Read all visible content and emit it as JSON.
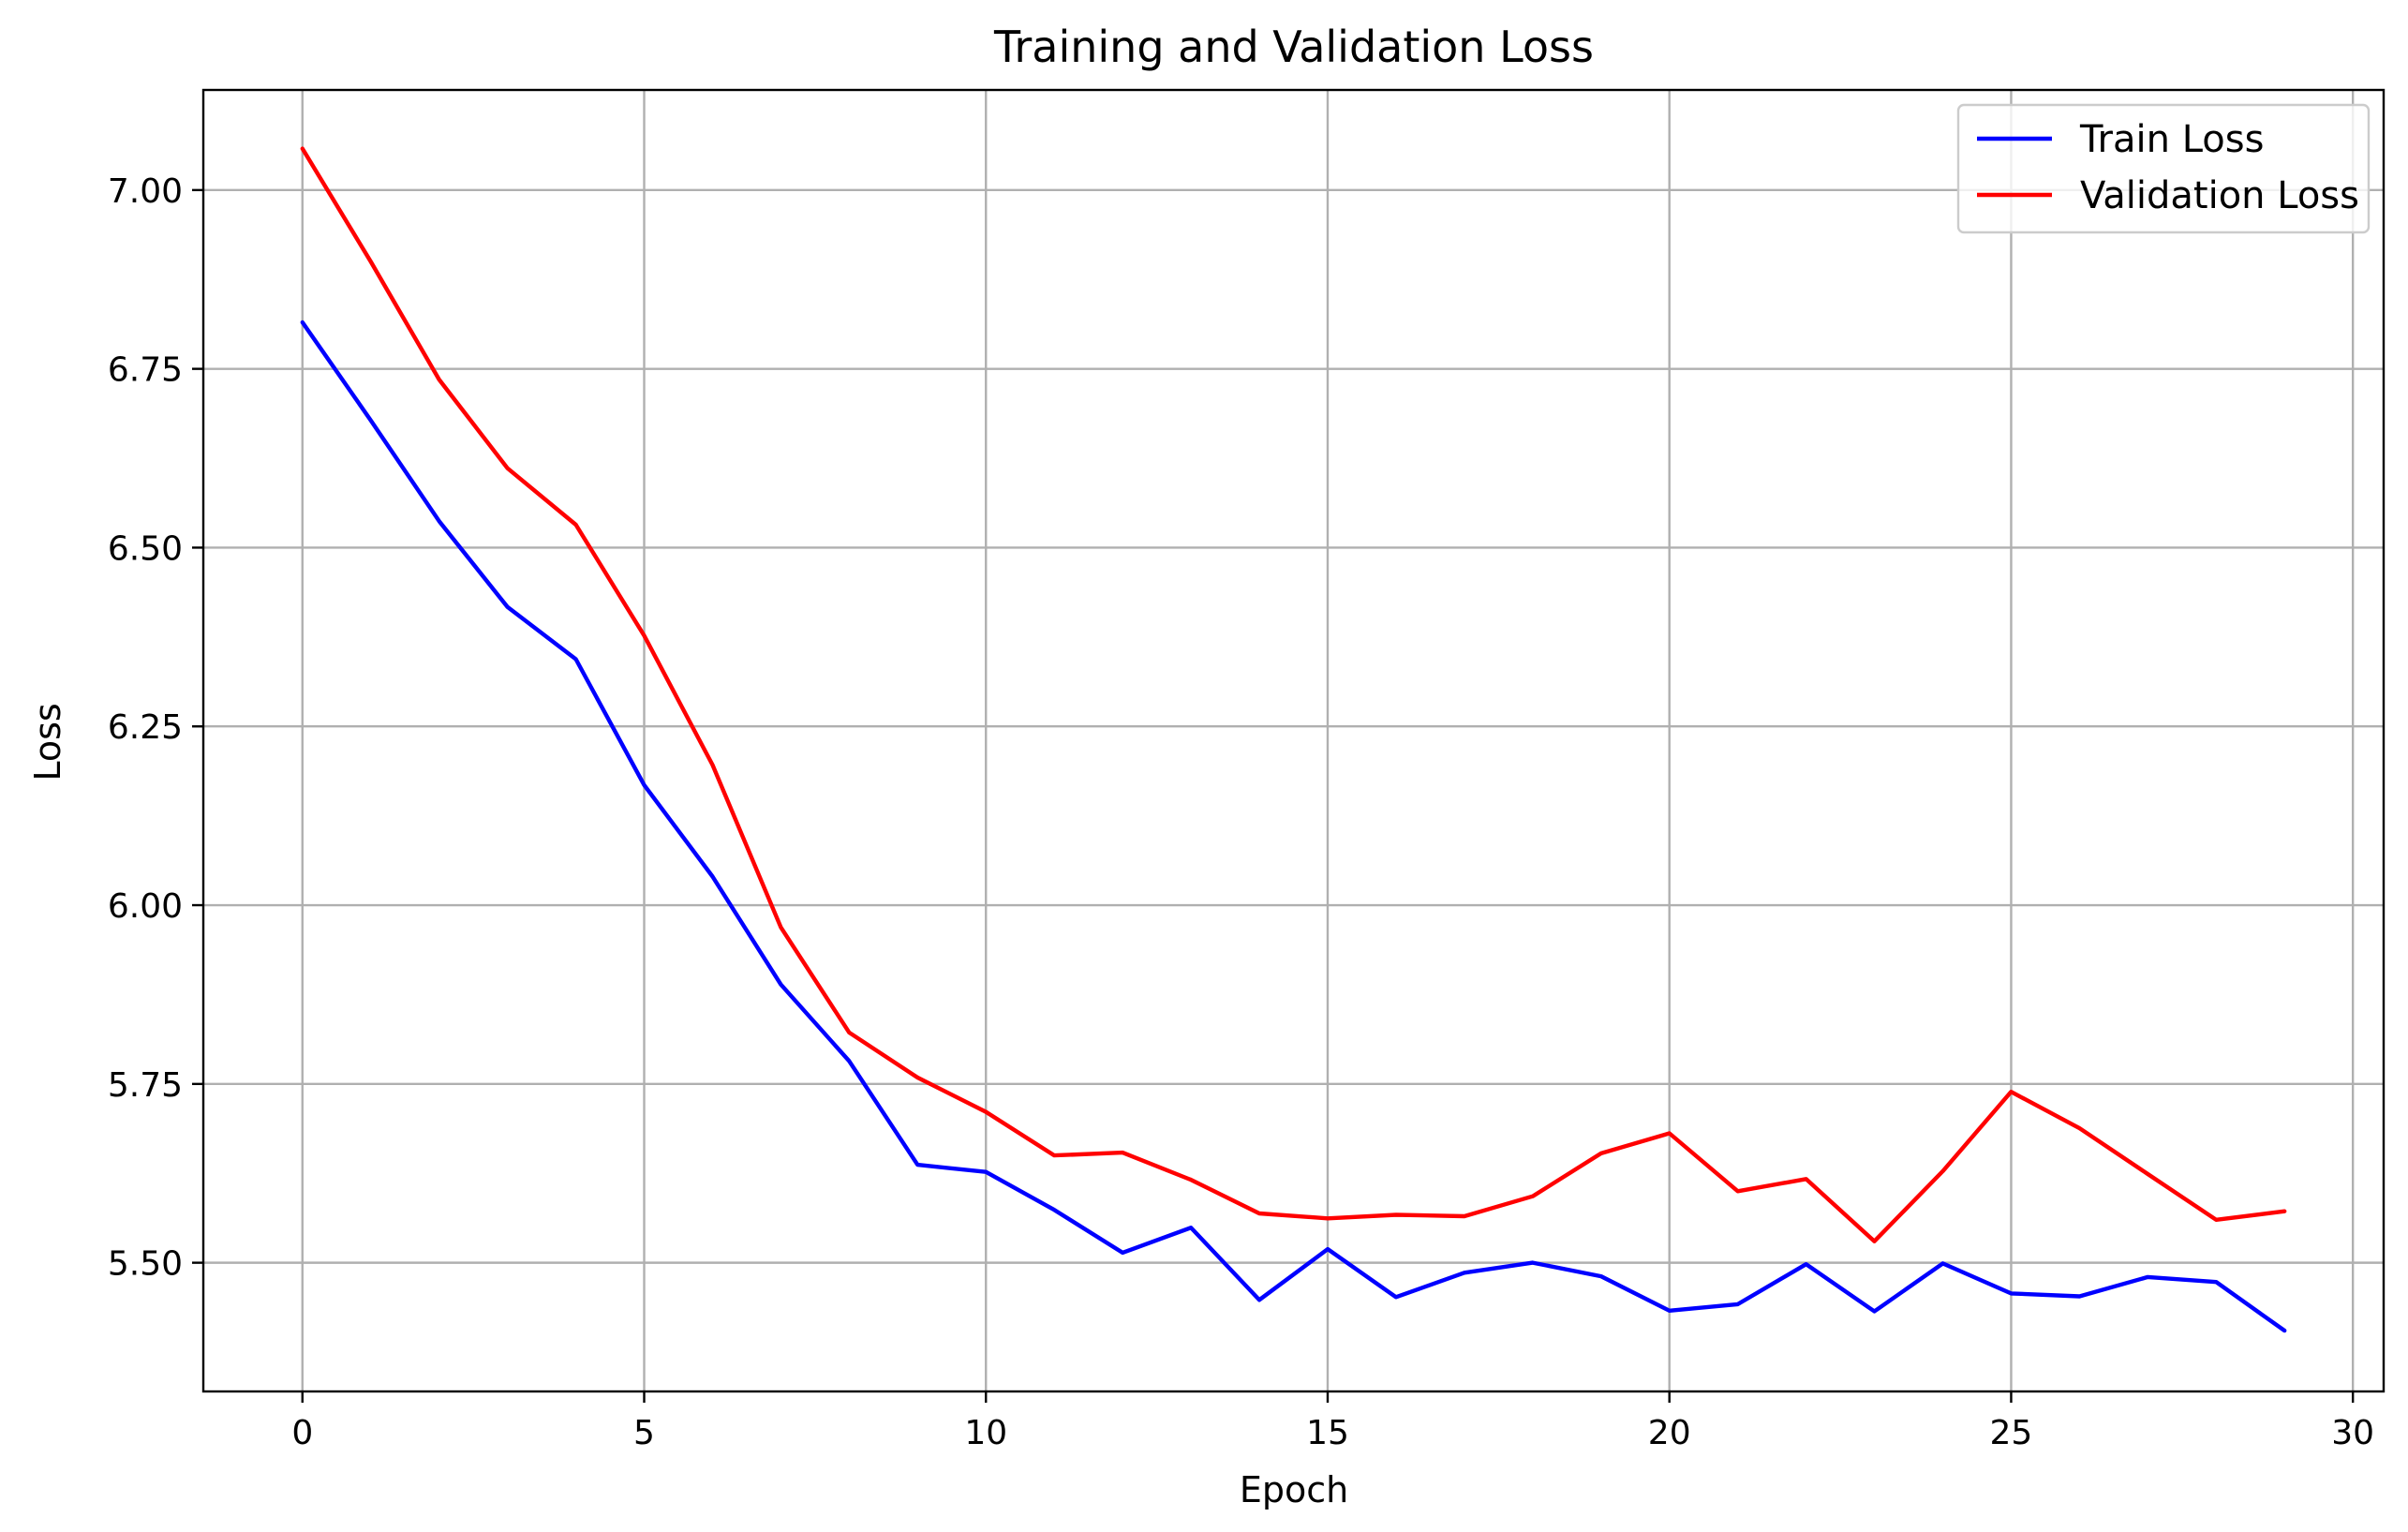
{
  "chart_data": {
    "type": "line",
    "title": "Training and Validation Loss",
    "xlabel": "Epoch",
    "ylabel": "Loss",
    "xlim": [
      -1.45,
      30.45
    ],
    "ylim": [
      5.32,
      7.14
    ],
    "x_ticks": [
      0,
      5,
      10,
      15,
      20,
      25,
      30
    ],
    "x_tick_labels": [
      "0",
      "5",
      "10",
      "15",
      "20",
      "25",
      "30"
    ],
    "y_ticks": [
      5.5,
      5.75,
      6.0,
      6.25,
      6.5,
      6.75,
      7.0
    ],
    "y_tick_labels": [
      "5.50",
      "5.75",
      "6.00",
      "6.25",
      "6.50",
      "6.75",
      "7.00"
    ],
    "grid": true,
    "legend": "top-right",
    "x": [
      0,
      1,
      2,
      3,
      4,
      5,
      6,
      7,
      8,
      9,
      10,
      11,
      12,
      13,
      14,
      15,
      16,
      17,
      18,
      19,
      20,
      21,
      22,
      23,
      24,
      25,
      26,
      27,
      28,
      29
    ],
    "series": [
      {
        "name": "Train Loss",
        "color": "#0000ff",
        "values": [
          6.815,
          6.678,
          6.537,
          6.417,
          6.344,
          6.168,
          6.04,
          5.889,
          5.782,
          5.637,
          5.627,
          5.574,
          5.514,
          5.549,
          5.448,
          5.519,
          5.452,
          5.486,
          5.5,
          5.481,
          5.433,
          5.442,
          5.498,
          5.432,
          5.499,
          5.457,
          5.453,
          5.48,
          5.473,
          5.405
        ]
      },
      {
        "name": "Validation Loss",
        "color": "#ff0000",
        "values": [
          7.058,
          6.9,
          6.735,
          6.611,
          6.532,
          6.377,
          6.196,
          5.969,
          5.822,
          5.759,
          5.711,
          5.65,
          5.654,
          5.616,
          5.569,
          5.562,
          5.567,
          5.565,
          5.593,
          5.653,
          5.681,
          5.6,
          5.617,
          5.53,
          5.628,
          5.739,
          5.688,
          5.624,
          5.56,
          5.572
        ]
      }
    ]
  }
}
